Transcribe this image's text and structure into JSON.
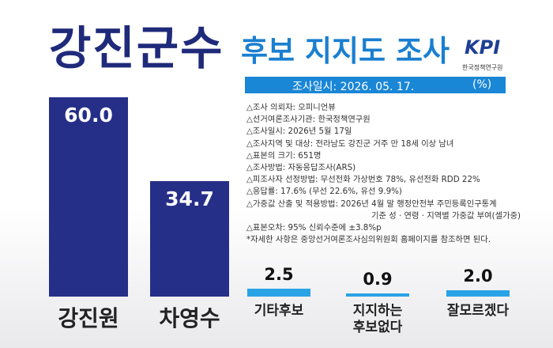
{
  "chart_data": {
    "type": "bar",
    "title": "강진군수",
    "subtitle": "후보 지지도 조사",
    "org": "KPI",
    "org_name": "한국정책연구원",
    "survey_date": "조사일시: 2026. 05. 17.",
    "unit": "(%)",
    "categories": [
      "강진원",
      "차영수",
      "기타후보",
      "지지하는 후보없다",
      "잘모르겠다"
    ],
    "values": [
      60.0,
      34.7,
      2.5,
      0.9,
      2.0
    ],
    "value_labels": [
      "60.0",
      "34.7",
      "2.5",
      "0.9",
      "2.0"
    ],
    "colors": [
      "#262f87",
      "#262f87",
      "#29a3e6",
      "#29a3e6",
      "#29a3e6"
    ],
    "notes": [
      "△조사 의뢰자: 오피니언뷰",
      "△선거여론조사기관: 한국정책연구원",
      "△조사일시: 2026년 5월 17일",
      "△조사지역 및 대상: 전라남도 강진군 거주 만 18세 이상 남녀",
      "△표본의 크기: 651명",
      "△조사방법: 자동응답조사(ARS)",
      "△피조사자 선정방법: 무선전화 가상번호 78%, 유선전화 RDD 22%",
      "△응답률: 17.6% (무선 22.6%, 유선 9.9%)",
      "△가중값 산출 및 적용방법: 2026년 4월 말 행정안전부 주민등록인구통계",
      "기준 성 · 연령 · 지역별 가중값 부여(셀가중)",
      "△표본오차: 95% 신뢰수준에 ±3.8%p",
      "*자세한 사항은 중앙선거여론조사심의위원회 홈페이지를 참조하면 된다."
    ]
  }
}
